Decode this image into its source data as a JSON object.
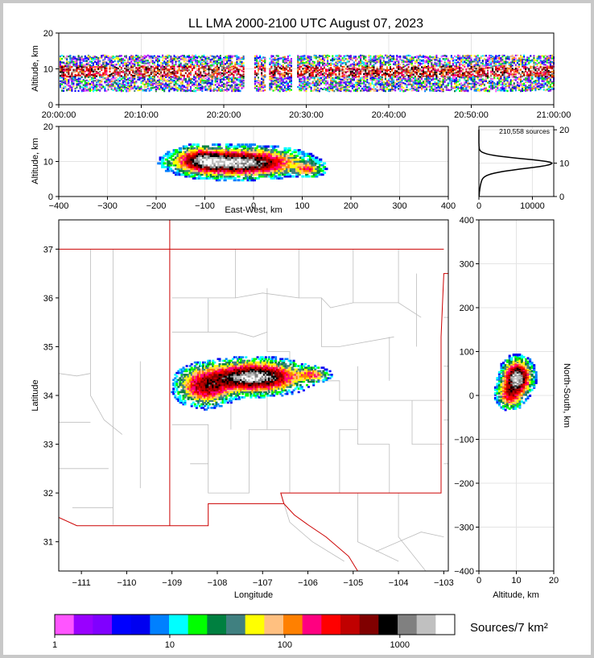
{
  "chart_data": [
    {
      "id": "time_height",
      "type": "heatmap",
      "title": "LL LMA 2000-2100 UTC August 07, 2023",
      "ylabel": "Altitude, km",
      "ylim": [
        0,
        20
      ],
      "yticks": [
        0,
        10,
        20
      ],
      "x_ticks": [
        "20:00:00",
        "20:10:00",
        "20:20:00",
        "20:30:00",
        "20:40:00",
        "20:50:00",
        "21:00:00"
      ],
      "x_range_minutes": [
        0,
        60
      ],
      "gaps_minutes": [
        [
          22.5,
          23.5
        ],
        [
          25.0,
          25.3
        ],
        [
          28.3,
          28.7
        ]
      ],
      "altitude_band_km": [
        4,
        14
      ],
      "core_km": [
        8,
        11
      ]
    },
    {
      "id": "ew_altitude",
      "type": "heatmap",
      "xlabel": "East-West, km",
      "ylabel": "Altitude, km",
      "xlim": [
        -400,
        400
      ],
      "xticks": [
        -400,
        -300,
        -200,
        -100,
        0,
        100,
        200,
        300,
        400
      ],
      "ylim": [
        0,
        20
      ],
      "yticks": [
        0,
        10,
        20
      ],
      "clusters": [
        {
          "x": -30,
          "y": 10,
          "sx": 70,
          "sy": 2.2,
          "w": 1.0
        },
        {
          "x": -110,
          "y": 11,
          "sx": 30,
          "sy": 2,
          "w": 0.5
        },
        {
          "x": 110,
          "y": 8,
          "sx": 18,
          "sy": 1.2,
          "w": 0.35
        }
      ]
    },
    {
      "id": "altitude_histogram",
      "type": "line",
      "annotation": "210,558 sources",
      "xlim": [
        0,
        14000
      ],
      "xticks": [
        0,
        10000
      ],
      "ylim": [
        0,
        21
      ],
      "yticks": [
        0,
        10,
        20
      ],
      "profile_peak": {
        "altitude_km": 10,
        "count": 13300,
        "sigma_low_km": 1.6,
        "sigma_high_km": 1.3
      }
    },
    {
      "id": "plan_view",
      "type": "heatmap",
      "xlabel": "Longitude",
      "ylabel": "Latitude",
      "xlim": [
        -111.5,
        -102.9
      ],
      "xticks": [
        -111,
        -110,
        -109,
        -108,
        -107,
        -106,
        -105,
        -104,
        -103
      ],
      "ylim": [
        30.4,
        37.6
      ],
      "yticks": [
        31,
        32,
        33,
        34,
        35,
        36,
        37
      ],
      "clusters": [
        {
          "lon": -107.2,
          "lat": 34.4,
          "sx": 0.6,
          "sy": 0.18,
          "w": 1.0
        },
        {
          "lon": -108.3,
          "lat": 34.2,
          "sx": 0.35,
          "sy": 0.22,
          "w": 0.6
        },
        {
          "lon": -105.9,
          "lat": 34.45,
          "sx": 0.2,
          "sy": 0.08,
          "w": 0.35
        }
      ]
    },
    {
      "id": "ns_altitude",
      "type": "heatmap",
      "xlabel": "Altitude, km",
      "ylabel": "North-South, km",
      "xlim": [
        0,
        20
      ],
      "xticks": [
        0,
        10,
        20
      ],
      "ylim": [
        -400,
        400
      ],
      "yticks": [
        -400,
        -300,
        -200,
        -100,
        0,
        100,
        200,
        300,
        400
      ],
      "clusters": [
        {
          "alt": 10,
          "ns": 45,
          "sa": 2.2,
          "sn": 22,
          "w": 1.0
        },
        {
          "alt": 8,
          "ns": 5,
          "sa": 2,
          "sn": 18,
          "w": 0.5
        }
      ]
    },
    {
      "id": "colorbar",
      "type": "table",
      "label": "Sources/7 km²",
      "tick_labels": [
        "1",
        "10",
        "100",
        "1000"
      ],
      "colors": [
        "#ff55ff",
        "#9900ff",
        "#8000ff",
        "#0000ff",
        "#0000f0",
        "#0080ff",
        "#00ffff",
        "#00ff00",
        "#008040",
        "#408080",
        "#ffff00",
        "#ffc080",
        "#ff8000",
        "#ff0080",
        "#ff0000",
        "#c00000",
        "#800000",
        "#000000",
        "#808080",
        "#c0c0c0",
        "#ffffff"
      ]
    }
  ]
}
